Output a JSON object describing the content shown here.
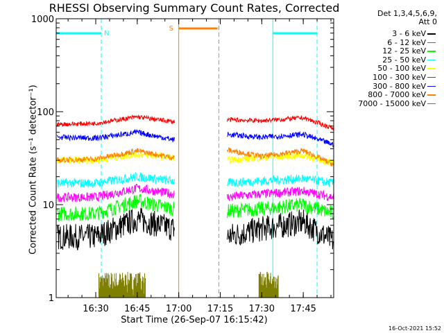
{
  "title": "RHESSI Observing Summary Count Rates, Corrected",
  "detector_info": [
    "Det 1,3,4,5,6,9,",
    "Att 0"
  ],
  "timestamp": "16-Oct-2021 15:52",
  "chart_data": {
    "type": "line",
    "title": "RHESSI Observing Summary Count Rates, Corrected",
    "xlabel": "Start Time (26-Sep-07 16:15:42)",
    "ylabel": "Corrected Count Rate (s⁻¹ detector⁻¹)",
    "x_range": [
      "16:15:42",
      "17:56"
    ],
    "ylim": [
      1,
      1000
    ],
    "yscale": "log",
    "x_ticks": [
      "16:30",
      "16:45",
      "17:00",
      "17:15",
      "17:30",
      "17:45"
    ],
    "y_ticks": [
      "1",
      "10",
      "100",
      "1000"
    ],
    "legend_position": "right",
    "data_gap": [
      "17:00",
      "17:16"
    ],
    "series": [
      {
        "name": "3 - 6 keV",
        "color": "#000000",
        "times": [
          "16:16",
          "16:30",
          "16:45",
          "16:58",
          "17:17",
          "17:30",
          "17:45",
          "17:56"
        ],
        "values": [
          4.5,
          4.5,
          7,
          5.5,
          4.5,
          5.5,
          6.5,
          4
        ]
      },
      {
        "name": "6 - 12 keV",
        "color": "#ff00ff",
        "times": [
          "16:16",
          "16:30",
          "16:45",
          "16:58",
          "17:17",
          "17:30",
          "17:45",
          "17:56"
        ],
        "values": [
          12,
          12,
          15,
          13,
          12,
          13,
          14,
          12
        ]
      },
      {
        "name": "12 - 25 keV",
        "color": "#00ff00",
        "times": [
          "16:16",
          "16:30",
          "16:45",
          "16:58",
          "17:17",
          "17:30",
          "17:45",
          "17:56"
        ],
        "values": [
          8,
          8,
          11,
          9,
          8.5,
          9,
          10,
          8
        ]
      },
      {
        "name": "25 - 50 keV",
        "color": "#00ffff",
        "times": [
          "16:16",
          "16:30",
          "16:45",
          "16:58",
          "17:17",
          "17:30",
          "17:45",
          "17:56"
        ],
        "values": [
          17,
          17,
          20,
          18,
          17,
          18,
          19,
          17
        ]
      },
      {
        "name": "50 - 100 keV",
        "color": "#ffff00",
        "times": [
          "16:16",
          "16:30",
          "16:45",
          "16:58",
          "17:17",
          "17:30",
          "17:45",
          "17:56"
        ],
        "values": [
          30,
          30,
          35,
          32,
          30,
          32,
          34,
          28
        ]
      },
      {
        "name": "100 - 300 keV",
        "color": "#ff0000",
        "times": [
          "16:16",
          "16:30",
          "16:45",
          "16:58",
          "17:17",
          "17:30",
          "17:45",
          "17:56"
        ],
        "values": [
          73,
          75,
          88,
          78,
          82,
          80,
          86,
          66
        ]
      },
      {
        "name": "300 - 800 keV",
        "color": "#0000ff",
        "times": [
          "16:16",
          "16:30",
          "16:45",
          "16:58",
          "17:17",
          "17:30",
          "17:45",
          "17:56"
        ],
        "values": [
          53,
          52,
          60,
          50,
          57,
          53,
          57,
          44
        ]
      },
      {
        "name": "800 - 7000 keV",
        "color": "#ff8000",
        "times": [
          "16:16",
          "16:30",
          "16:45",
          "16:58",
          "17:17",
          "17:30",
          "17:45",
          "17:56"
        ],
        "values": [
          30,
          31,
          38,
          32,
          39,
          33,
          38,
          27
        ]
      },
      {
        "name": "7000 - 15000 keV",
        "color": "#808000",
        "times": [
          "16:31",
          "16:47",
          "17:29",
          "17:36"
        ],
        "values": [
          1,
          1,
          1,
          1
        ]
      }
    ],
    "flags": [
      {
        "label": "N",
        "color": "#00ffff"
      },
      {
        "label": "S",
        "color": "#ff8000"
      }
    ]
  }
}
